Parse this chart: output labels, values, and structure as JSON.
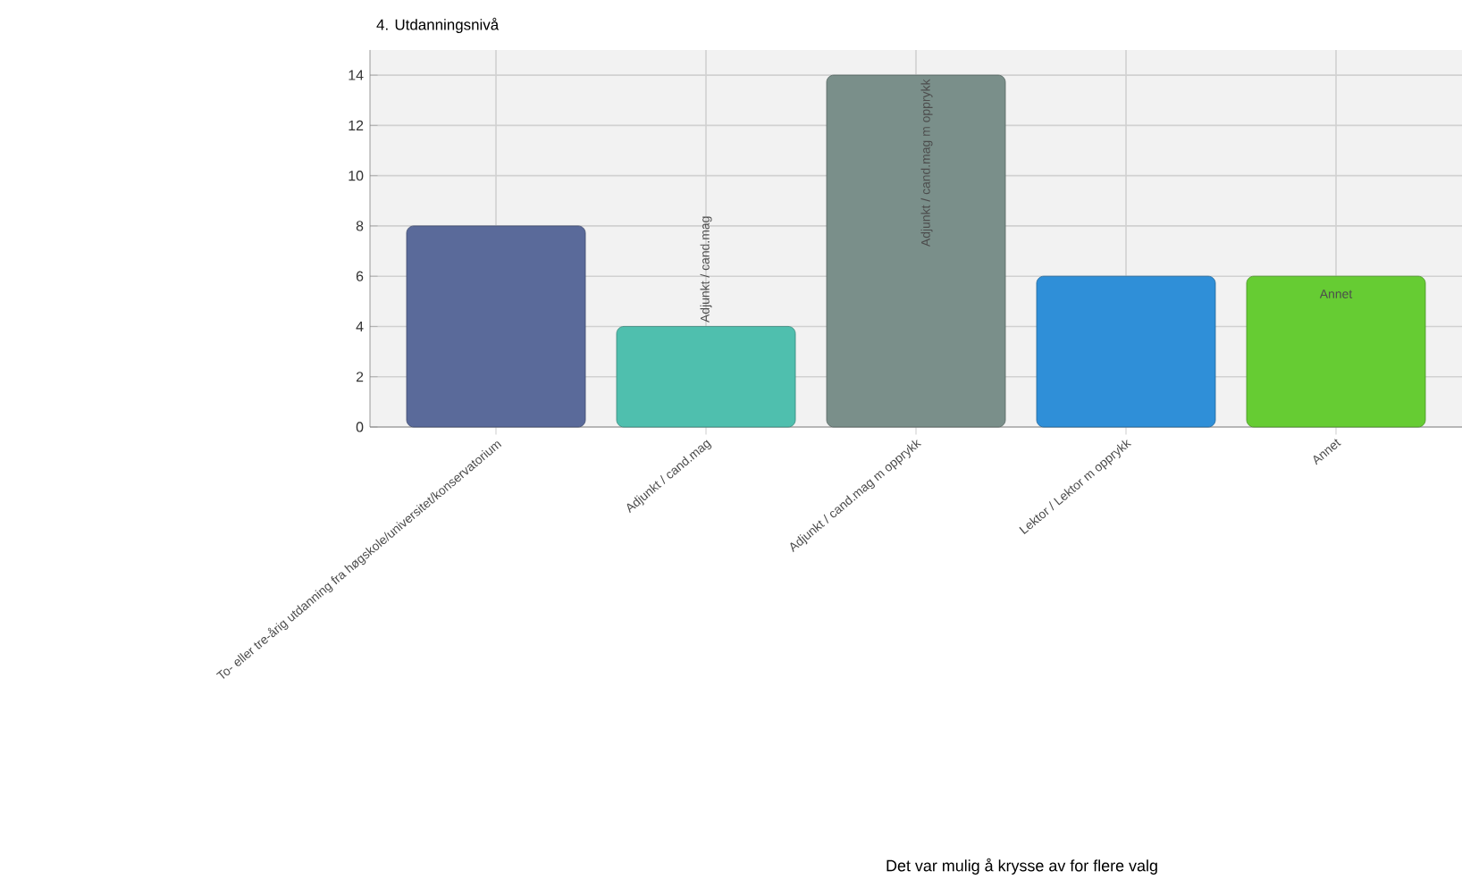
{
  "chart_data": {
    "type": "bar",
    "title": "4. Utdanningsnivå",
    "categories": [
      "To- eller tre-årig utdanning fra høgskole/universitet/konservatorium",
      "Adjunkt / cand.mag",
      "Adjunkt / cand.mag m opprykk",
      "Lektor / Lektor m opprykk",
      "Annet"
    ],
    "values": [
      8,
      4,
      14,
      6,
      6
    ],
    "colors": [
      "#5a6a9a",
      "#4fbfae",
      "#7a8f8a",
      "#2f8fd8",
      "#66cc33"
    ],
    "ylim": [
      0,
      15
    ],
    "yticks": [
      0,
      2,
      4,
      6,
      8,
      10,
      12,
      14
    ],
    "grid": true,
    "annotations": [
      {
        "text": "Adjunkt / cand.mag",
        "x": "Adjunkt / cand.mag",
        "y": 4
      },
      {
        "text": "Adjunkt / cand.mag m opprykk",
        "x": "Adjunkt / cand.mag m opprykk",
        "y": 14
      },
      {
        "text": "Annet",
        "x": "Annet",
        "y": 6
      },
      "Det var mulig å krysse av for flere valg"
    ]
  }
}
